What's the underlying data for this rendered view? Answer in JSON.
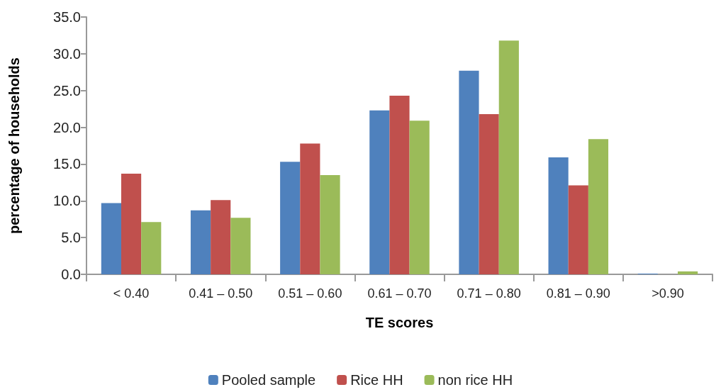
{
  "chart_data": {
    "type": "bar",
    "xlabel": "TE scores",
    "ylabel": "percentage of households",
    "categories": [
      "< 0.40",
      "0.41 – 0.50",
      "0.51 – 0.60",
      "0.61 – 0.70",
      "0.71 – 0.80",
      "0.81 – 0.90",
      ">0.90"
    ],
    "series": [
      {
        "name": "Pooled sample",
        "color": "#4f81bd",
        "values": [
          9.7,
          8.7,
          15.3,
          22.3,
          27.7,
          15.9,
          0.1
        ]
      },
      {
        "name": "Rice HH",
        "color": "#c0504d",
        "values": [
          13.7,
          10.1,
          17.8,
          24.3,
          21.8,
          12.1,
          0
        ]
      },
      {
        "name": "non rice HH",
        "color": "#9bbb59",
        "values": [
          7.1,
          7.7,
          13.5,
          20.9,
          31.8,
          18.4,
          0.4
        ]
      }
    ],
    "ylim": [
      0,
      35
    ],
    "yticks": [
      {
        "value": 0,
        "label": "0.0"
      },
      {
        "value": 5,
        "label": "5.0"
      },
      {
        "value": 10,
        "label": "10.0"
      },
      {
        "value": 15,
        "label": "15.0"
      },
      {
        "value": 20,
        "label": "20.0"
      },
      {
        "value": 25,
        "label": "25.0"
      },
      {
        "value": 30,
        "label": "30.0"
      },
      {
        "value": 35,
        "label": "35.0"
      }
    ],
    "grid": false,
    "legend": "bottom"
  }
}
